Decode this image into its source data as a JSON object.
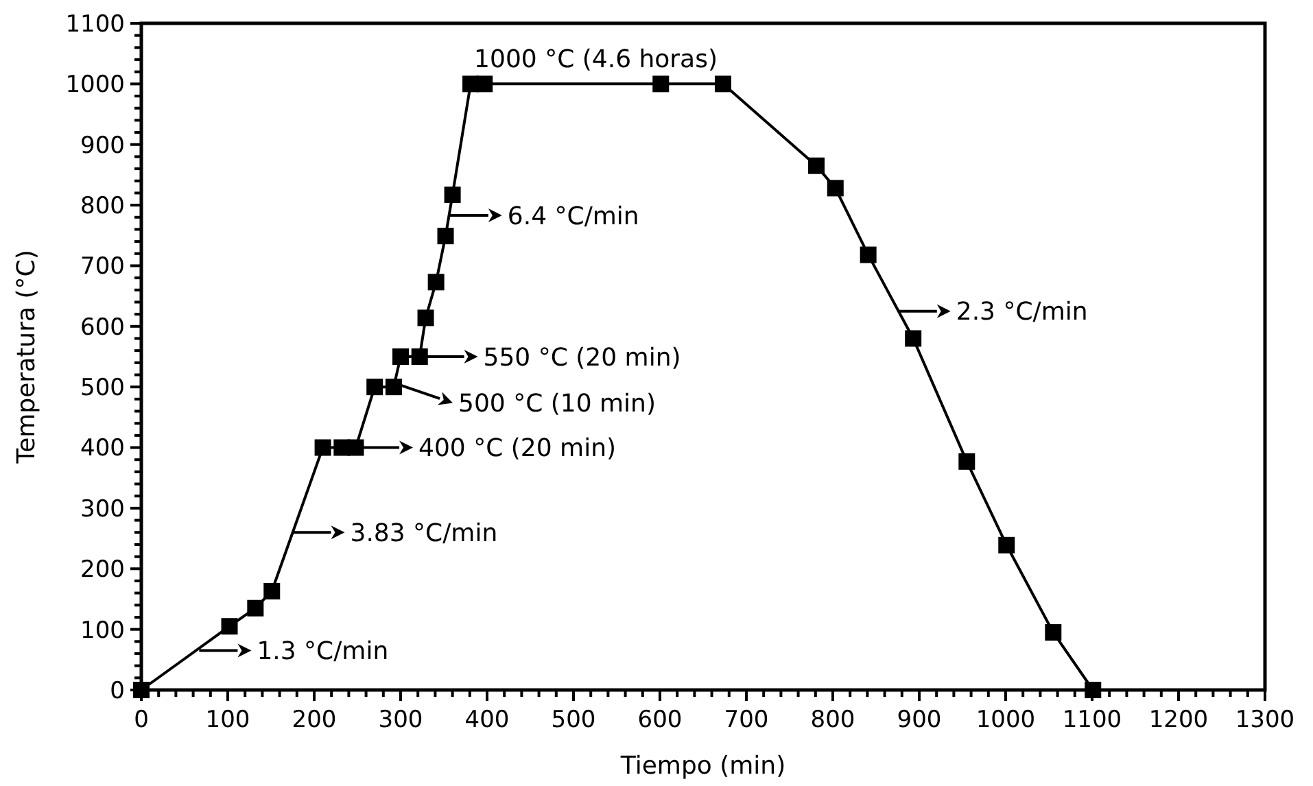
{
  "chart_data": {
    "type": "line",
    "xlabel": "Tiempo (min)",
    "ylabel": "Temperatura (°C)",
    "series": [
      {
        "color": "#000000",
        "x": [
          0,
          102,
          132,
          151,
          210,
          232,
          248,
          270,
          292,
          300,
          322,
          329,
          341,
          352,
          360,
          381,
          397,
          601,
          673,
          781,
          803,
          841,
          893,
          955,
          1001,
          1055,
          1101
        ],
        "values": [
          0,
          105,
          135,
          163,
          400,
          400,
          400,
          500,
          500,
          550,
          550,
          614,
          673,
          749,
          817,
          1000,
          1000,
          1000,
          1000,
          865,
          828,
          718,
          580,
          377,
          239,
          95,
          0
        ]
      }
    ],
    "xlim": [
      0,
      1300
    ],
    "ylim": [
      0,
      1100
    ],
    "xticks": [
      0,
      {
        "value": 20,
        "label": null
      },
      {
        "value": 40,
        "label": null
      },
      {
        "value": 60,
        "label": null
      },
      {
        "value": 80,
        "label": null
      },
      100,
      {
        "value": 120,
        "label": null
      },
      {
        "value": 140,
        "label": null
      },
      {
        "value": 160,
        "label": null
      },
      {
        "value": 180,
        "label": null
      },
      200,
      {
        "value": 220,
        "label": null
      },
      {
        "value": 240,
        "label": null
      },
      {
        "value": 260,
        "label": null
      },
      {
        "value": 280,
        "label": null
      },
      300,
      {
        "value": 320,
        "label": null
      },
      {
        "value": 340,
        "label": null
      },
      {
        "value": 360,
        "label": null
      },
      {
        "value": 380,
        "label": null
      },
      400,
      {
        "value": 420,
        "label": null
      },
      {
        "value": 440,
        "label": null
      },
      {
        "value": 460,
        "label": null
      },
      {
        "value": 480,
        "label": null
      },
      500,
      {
        "value": 520,
        "label": null
      },
      {
        "value": 540,
        "label": null
      },
      {
        "value": 560,
        "label": null
      },
      {
        "value": 580,
        "label": null
      },
      600,
      {
        "value": 620,
        "label": null
      },
      {
        "value": 640,
        "label": null
      },
      {
        "value": 660,
        "label": null
      },
      {
        "value": 680,
        "label": null
      },
      700,
      {
        "value": 720,
        "label": null
      },
      {
        "value": 740,
        "label": null
      },
      {
        "value": 760,
        "label": null
      },
      {
        "value": 780,
        "label": null
      },
      800,
      {
        "value": 820,
        "label": null
      },
      {
        "value": 840,
        "label": null
      },
      {
        "value": 860,
        "label": null
      },
      {
        "value": 880,
        "label": null
      },
      900,
      {
        "value": 920,
        "label": null
      },
      {
        "value": 940,
        "label": null
      },
      {
        "value": 960,
        "label": null
      },
      {
        "value": 980,
        "label": null
      },
      1000,
      {
        "value": 1020,
        "label": null
      },
      {
        "value": 1040,
        "label": null
      },
      {
        "value": 1060,
        "label": null
      },
      {
        "value": 1080,
        "label": null
      },
      1100,
      {
        "value": 1120,
        "label": null
      },
      {
        "value": 1140,
        "label": null
      },
      {
        "value": 1160,
        "label": null
      },
      {
        "value": 1180,
        "label": null
      },
      1200,
      {
        "value": 1220,
        "label": null
      },
      {
        "value": 1240,
        "label": null
      },
      {
        "value": 1260,
        "label": null
      },
      {
        "value": 1280,
        "label": null
      },
      1300
    ],
    "yticks": [
      0,
      {
        "value": 20,
        "label": null
      },
      {
        "value": 40,
        "label": null
      },
      {
        "value": 60,
        "label": null
      },
      {
        "value": 80,
        "label": null
      },
      100,
      {
        "value": 120,
        "label": null
      },
      {
        "value": 140,
        "label": null
      },
      {
        "value": 160,
        "label": null
      },
      {
        "value": 180,
        "label": null
      },
      200,
      {
        "value": 220,
        "label": null
      },
      {
        "value": 240,
        "label": null
      },
      {
        "value": 260,
        "label": null
      },
      {
        "value": 280,
        "label": null
      },
      300,
      {
        "value": 320,
        "label": null
      },
      {
        "value": 340,
        "label": null
      },
      {
        "value": 360,
        "label": null
      },
      {
        "value": 380,
        "label": null
      },
      400,
      {
        "value": 420,
        "label": null
      },
      {
        "value": 440,
        "label": null
      },
      {
        "value": 460,
        "label": null
      },
      {
        "value": 480,
        "label": null
      },
      500,
      {
        "value": 520,
        "label": null
      },
      {
        "value": 540,
        "label": null
      },
      {
        "value": 560,
        "label": null
      },
      {
        "value": 580,
        "label": null
      },
      600,
      {
        "value": 620,
        "label": null
      },
      {
        "value": 640,
        "label": null
      },
      {
        "value": 660,
        "label": null
      },
      {
        "value": 680,
        "label": null
      },
      700,
      {
        "value": 720,
        "label": null
      },
      {
        "value": 740,
        "label": null
      },
      {
        "value": 760,
        "label": null
      },
      {
        "value": 780,
        "label": null
      },
      800,
      {
        "value": 820,
        "label": null
      },
      {
        "value": 840,
        "label": null
      },
      {
        "value": 860,
        "label": null
      },
      {
        "value": 880,
        "label": null
      },
      900,
      {
        "value": 920,
        "label": null
      },
      {
        "value": 940,
        "label": null
      },
      {
        "value": 960,
        "label": null
      },
      {
        "value": 980,
        "label": null
      },
      1000,
      {
        "value": 1020,
        "label": null
      },
      {
        "value": 1040,
        "label": null
      },
      {
        "value": 1060,
        "label": null
      },
      {
        "value": 1080,
        "label": null
      },
      1100
    ],
    "marker": "square",
    "line_style": "solid",
    "grid": false,
    "annotations": [
      {
        "text": "1000 °C (4.6 horas)",
        "x": 385,
        "y": 1000
      },
      {
        "text": "6.4 °C/min",
        "x": 357,
        "y": 783
      },
      {
        "text": "550 °C (20 min)",
        "x": 329,
        "y": 550
      },
      {
        "text": "500 °C (10 min)",
        "x": 300,
        "y": 503
      },
      {
        "text": "400 °C (20 min)",
        "x": 254,
        "y": 400
      },
      {
        "text": "3.83 °C/min",
        "x": 175,
        "y": 260
      },
      {
        "text": "1.3 °C/min",
        "x": 67,
        "y": 65
      },
      {
        "text": "2.3 °C/min",
        "x": 876,
        "y": 625
      }
    ]
  }
}
